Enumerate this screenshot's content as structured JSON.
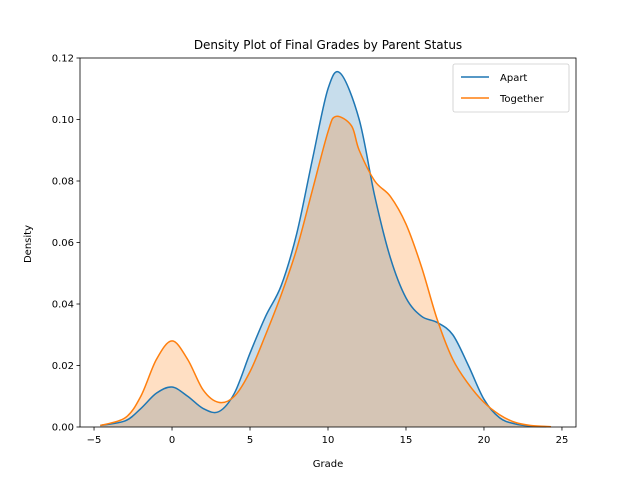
{
  "chart_data": {
    "type": "area",
    "title": "Density Plot of Final Grades by Parent Status",
    "xlabel": "Grade",
    "ylabel": "Density",
    "xlim": [
      -5.9,
      25.9
    ],
    "ylim": [
      0,
      0.12
    ],
    "xticks": [
      -5,
      0,
      5,
      10,
      15,
      20,
      25
    ],
    "yticks": [
      0.0,
      0.02,
      0.04,
      0.06,
      0.08,
      0.1,
      0.12
    ],
    "ytick_labels": [
      "0.00",
      "0.02",
      "0.04",
      "0.06",
      "0.08",
      "0.10",
      "0.12"
    ],
    "legend_position": "top-right",
    "series": [
      {
        "name": "Apart",
        "color": "#1f77b4",
        "fill_color": "#1f77b4",
        "fill_opacity": 0.25,
        "x": [
          -4.6,
          -3.0,
          -2.0,
          -1.0,
          0.0,
          1.0,
          2.0,
          3.0,
          4.0,
          5.0,
          6.0,
          7.0,
          8.0,
          9.0,
          10.0,
          10.8,
          12.0,
          13.0,
          14.0,
          15.0,
          16.0,
          17.0,
          18.0,
          19.0,
          20.0,
          21.0,
          22.0,
          23.0,
          24.0
        ],
        "y": [
          0.0005,
          0.002,
          0.006,
          0.011,
          0.013,
          0.01,
          0.006,
          0.005,
          0.011,
          0.024,
          0.036,
          0.046,
          0.063,
          0.087,
          0.11,
          0.115,
          0.1,
          0.075,
          0.055,
          0.042,
          0.036,
          0.034,
          0.03,
          0.02,
          0.009,
          0.003,
          0.001,
          0.0003,
          0.0001
        ]
      },
      {
        "name": "Together",
        "color": "#ff7f0e",
        "fill_color": "#ff7f0e",
        "fill_opacity": 0.25,
        "x": [
          -4.6,
          -3.0,
          -2.0,
          -1.0,
          0.0,
          1.0,
          2.0,
          3.0,
          4.0,
          5.0,
          6.0,
          7.0,
          8.0,
          9.0,
          10.0,
          10.5,
          11.5,
          12.0,
          13.0,
          14.0,
          15.0,
          16.0,
          17.0,
          18.0,
          19.0,
          20.0,
          21.0,
          22.0,
          23.0,
          24.3
        ],
        "y": [
          0.0005,
          0.003,
          0.01,
          0.022,
          0.028,
          0.022,
          0.012,
          0.008,
          0.01,
          0.018,
          0.03,
          0.043,
          0.058,
          0.077,
          0.096,
          0.101,
          0.098,
          0.09,
          0.08,
          0.075,
          0.066,
          0.052,
          0.035,
          0.022,
          0.014,
          0.008,
          0.004,
          0.0015,
          0.0005,
          0.0001
        ]
      }
    ]
  }
}
